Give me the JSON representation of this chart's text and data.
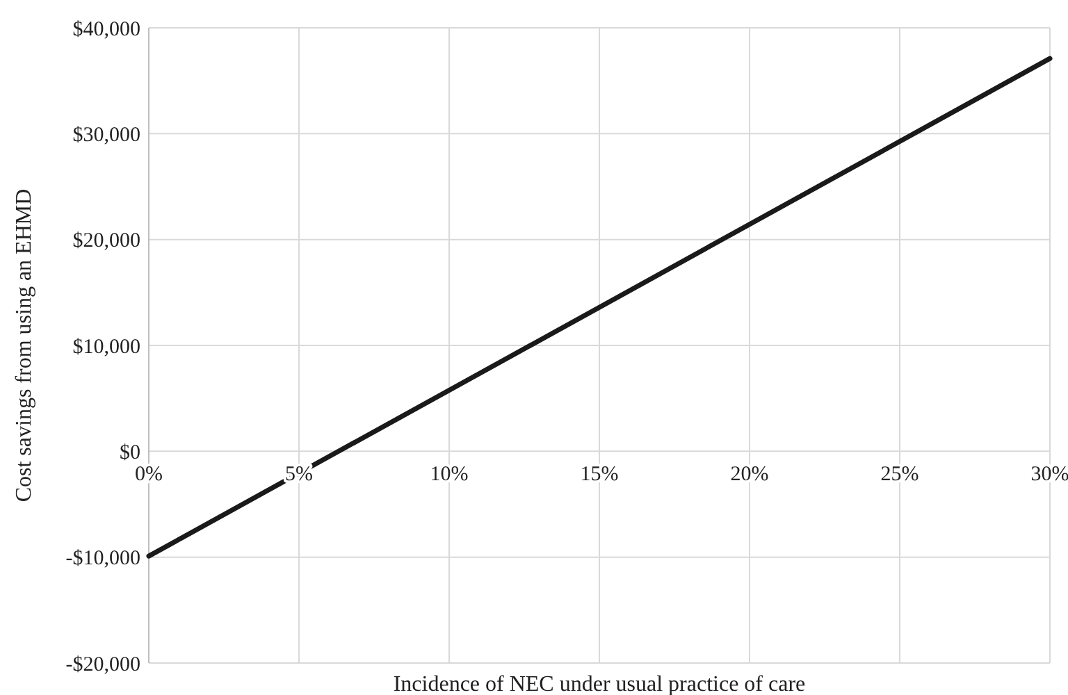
{
  "chart_data": {
    "type": "line",
    "xlabel": "Incidence of NEC under usual practice of care",
    "ylabel": "Cost savings from using an EHMD",
    "x": [
      0,
      30
    ],
    "series": [
      {
        "color": "#1a1a1a",
        "values": [
          -9900,
          37100
        ]
      }
    ],
    "xlim": [
      0,
      30
    ],
    "xticks": [
      {
        "value": 0,
        "label": "0%"
      },
      {
        "value": 5,
        "label": "5%"
      },
      {
        "value": 10,
        "label": "10%"
      },
      {
        "value": 15,
        "label": "15%"
      },
      {
        "value": 20,
        "label": "20%"
      },
      {
        "value": 25,
        "label": "25%"
      },
      {
        "value": 30,
        "label": "30%"
      }
    ],
    "ylim": [
      -20000,
      40000
    ],
    "yticks": [
      {
        "value": -20000,
        "label": "-$20,000"
      },
      {
        "value": -10000,
        "label": "-$10,000"
      },
      {
        "value": 0,
        "label": "$0"
      },
      {
        "value": 10000,
        "label": "$10,000"
      },
      {
        "value": 20000,
        "label": "$20,000"
      },
      {
        "value": 30000,
        "label": "$30,000"
      },
      {
        "value": 40000,
        "label": "$40,000"
      }
    ],
    "grid": true,
    "marker": "none",
    "line_style": "solid"
  }
}
